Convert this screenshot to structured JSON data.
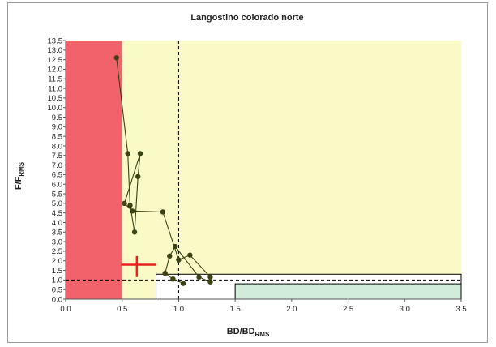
{
  "chart_data": {
    "type": "line",
    "title": "Langostino colorado norte",
    "xlabel": {
      "main": "BD/BD",
      "sub": "RMS"
    },
    "ylabel": {
      "main": "F/F",
      "sub": "RMS"
    },
    "xlim": [
      0,
      3.5
    ],
    "ylim": [
      0,
      13.5
    ],
    "x_ticks": [
      "0.0",
      "0.5",
      "1.0",
      "1.5",
      "2.0",
      "2.5",
      "3.0",
      "3.5"
    ],
    "y_ticks": [
      "0.0",
      "0.5",
      "1.0",
      "1.5",
      "2.0",
      "2.5",
      "3.0",
      "3.5",
      "4.0",
      "4.5",
      "5.0",
      "5.5",
      "6.0",
      "6.5",
      "7.0",
      "7.5",
      "8.0",
      "8.5",
      "9.0",
      "9.5",
      "10.0",
      "10.5",
      "11.0",
      "11.5",
      "12.0",
      "12.5",
      "13.0",
      "13.5"
    ],
    "zones": [
      {
        "name": "overexploited-red",
        "color": "#f2626a",
        "x": [
          0,
          0.5
        ],
        "y": [
          0,
          13.5
        ]
      },
      {
        "name": "overfishing-yellow",
        "color": "#fafac6",
        "x": [
          0.5,
          3.5
        ],
        "y": [
          0,
          13.5
        ]
      },
      {
        "name": "fully-exploited-white",
        "color": "#ffffff",
        "x": [
          0.8,
          3.5
        ],
        "y": [
          0,
          1.3
        ]
      },
      {
        "name": "underexploited-green",
        "color": "#d2ecdc",
        "x": [
          1.5,
          3.5
        ],
        "y": [
          0,
          0.8
        ]
      }
    ],
    "reference_lines": {
      "x": 1.0,
      "y": 1.0
    },
    "series": [
      {
        "color": "#3b4214",
        "x": [
          0.45,
          0.55,
          0.57,
          0.61,
          0.64,
          0.66,
          0.52,
          0.59,
          0.86,
          1.0,
          1.1,
          1.28,
          1.28,
          1.18,
          0.97,
          0.92,
          0.88,
          0.95,
          1.04
        ],
        "y": [
          12.6,
          7.6,
          4.9,
          3.5,
          6.4,
          7.6,
          5.0,
          4.6,
          4.55,
          2.05,
          2.3,
          1.15,
          0.9,
          1.15,
          2.75,
          2.25,
          1.35,
          1.05,
          0.82
        ]
      }
    ],
    "estimate_point": {
      "color": "#e8231f",
      "x": 0.63,
      "y": 1.8,
      "x_range": [
        0.49,
        0.8
      ],
      "y_range": [
        1.15,
        2.25
      ]
    }
  }
}
